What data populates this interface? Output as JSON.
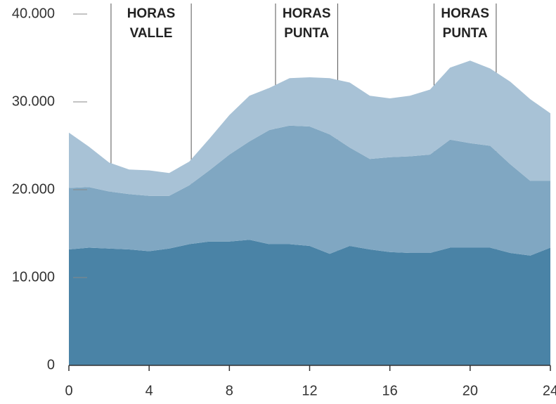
{
  "chart_data": {
    "type": "stacked_area",
    "x": [
      0,
      1,
      2,
      3,
      4,
      5,
      6,
      7,
      8,
      9,
      10,
      11,
      12,
      13,
      14,
      15,
      16,
      17,
      18,
      19,
      20,
      21,
      22,
      23,
      24
    ],
    "series": [
      {
        "color": "#4a83a6",
        "values": [
          13200,
          13400,
          13300,
          13200,
          13000,
          13300,
          13800,
          14100,
          14100,
          14300,
          13800,
          13800,
          13600,
          12700,
          13600,
          13200,
          12900,
          12800,
          12800,
          13400,
          13400,
          13400,
          12800,
          12500,
          13400
        ]
      },
      {
        "color": "#80a7c2",
        "values": [
          7000,
          6900,
          6500,
          6300,
          6300,
          6000,
          6700,
          8100,
          9900,
          11200,
          13000,
          13500,
          13600,
          13600,
          11200,
          10300,
          10800,
          11000,
          11200,
          12300,
          11900,
          11600,
          10100,
          8500,
          7600
        ]
      },
      {
        "color": "#a8c2d6",
        "values": [
          6300,
          4600,
          3300,
          2800,
          2900,
          2600,
          2700,
          3600,
          4500,
          5200,
          4800,
          5400,
          5600,
          6400,
          7400,
          7200,
          6700,
          6900,
          7400,
          8200,
          9400,
          8800,
          9400,
          9300,
          7700
        ]
      }
    ],
    "xlim": [
      0,
      24
    ],
    "xticks": [
      0,
      4,
      8,
      12,
      16,
      20,
      24
    ],
    "ylim": [
      0,
      40000
    ],
    "yticks": [
      0,
      {
        "value": 10000,
        "label": "10.000"
      },
      {
        "value": 20000,
        "label": "20.000"
      },
      {
        "value": 30000,
        "label": "30.000"
      },
      {
        "value": 40000,
        "label": "40.000"
      }
    ],
    "annotations": [
      {
        "text": [
          "HORAS",
          "VALLE"
        ],
        "x": [
          2.1,
          6.1
        ]
      },
      {
        "text": [
          "HORAS",
          "PUNTA"
        ],
        "x": [
          10.3,
          13.4
        ]
      },
      {
        "text": [
          "HORAS",
          "PUNTA"
        ],
        "x": [
          18.2,
          21.3
        ]
      }
    ]
  }
}
